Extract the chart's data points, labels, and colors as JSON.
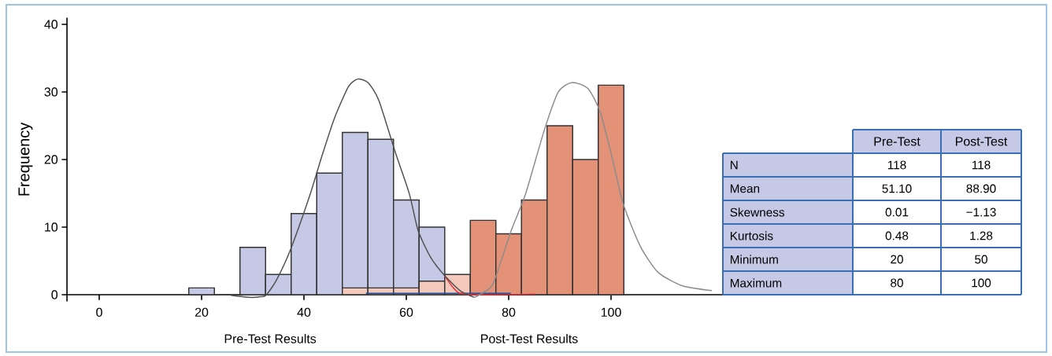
{
  "chart_data": [
    {
      "type": "histogram",
      "ylabel": "Frequency",
      "annotations": [
        "Pre-Test Results",
        "Post-Test Results"
      ],
      "bins": [
        17.5,
        22.5,
        27.5,
        32.5,
        37.5,
        42.5,
        47.5,
        52.5,
        57.5,
        62.5,
        67.5,
        72.5,
        77.5,
        82.5,
        87.5,
        92.5,
        97.5,
        102.5
      ],
      "series": [
        {
          "type": "histogram",
          "color": "#c5c9e6",
          "values": [
            1,
            0,
            7,
            3,
            12,
            18,
            24,
            23,
            14,
            10,
            null,
            null,
            null,
            null,
            null,
            null,
            null
          ]
        },
        {
          "type": "histogram",
          "colors": [
            null,
            null,
            null,
            null,
            null,
            null,
            "#f2c9bb",
            "#f2c9bb",
            "#f2c9bb",
            "#f2c9bb",
            "#f2c9bb",
            "#e39277",
            "#e39277",
            "#e39277",
            "#e39277",
            "#e39277",
            "#e39277"
          ],
          "values": [
            null,
            null,
            null,
            null,
            null,
            null,
            1,
            1,
            1,
            2,
            3,
            11,
            9,
            14,
            25,
            20,
            31
          ]
        },
        {
          "type": "line",
          "color": "#1f4e9c",
          "x": [
            52.1,
            80.4
          ],
          "values": [
            0.2,
            0.2
          ]
        },
        {
          "type": "line",
          "color": "#e8303a",
          "x": [
            67.4,
            69,
            70.5,
            75,
            85.2
          ],
          "values": [
            2.9,
            1.2,
            0.2,
            0,
            0.1
          ]
        },
        {
          "type": "line",
          "color": "#505050",
          "x": [
            25.7,
            28,
            29.8,
            31.5,
            32.6,
            34.5,
            36.8,
            39,
            41.4,
            43.5,
            46,
            48.7,
            50.5,
            52.5,
            54.6,
            57.8,
            60.6,
            62.3,
            64.7,
            67.4,
            70.5,
            73.3
          ],
          "values": [
            -0.1,
            -0.3,
            -0.4,
            -0.3,
            -0.1,
            2,
            5.6,
            10,
            15.3,
            20.5,
            26.2,
            30.8,
            31.9,
            31.4,
            28.8,
            21.2,
            14.9,
            9.5,
            5.6,
            2.9,
            0.6,
            -0.4
          ]
        },
        {
          "type": "line",
          "color": "#8c8c8c",
          "x": [
            73.3,
            75,
            77,
            80.5,
            83.3,
            86.9,
            89.7,
            92.4,
            95.5,
            97.9,
            100.2,
            102.4,
            105.7,
            109.2,
            114,
            119.7
          ],
          "values": [
            -0.4,
            0.3,
            1.7,
            9.5,
            14.9,
            24.2,
            30,
            31.4,
            30.5,
            27,
            20.3,
            13.4,
            7.2,
            3.3,
            1.3,
            0.6
          ]
        }
      ],
      "xlim": [
        -6.3,
        161.4
      ],
      "ylim": [
        -1,
        41
      ],
      "xticks": [
        0,
        20,
        40,
        60,
        80,
        100
      ],
      "yticks": [
        0,
        10,
        20,
        30,
        40
      ]
    },
    {
      "type": "other",
      "categories": [
        "Pre-Test",
        "Post-Test"
      ],
      "y_categories": [
        "N",
        "Mean",
        "Skewness",
        "Kurtosis",
        "Minimum",
        "Maximum"
      ],
      "cell_labels": [
        [
          "118",
          "118"
        ],
        [
          "51.10",
          "88.90"
        ],
        [
          "0.01",
          "−1.13"
        ],
        [
          "0.48",
          "1.28"
        ],
        [
          "20",
          "50"
        ],
        [
          "80",
          "100"
        ]
      ]
    }
  ]
}
